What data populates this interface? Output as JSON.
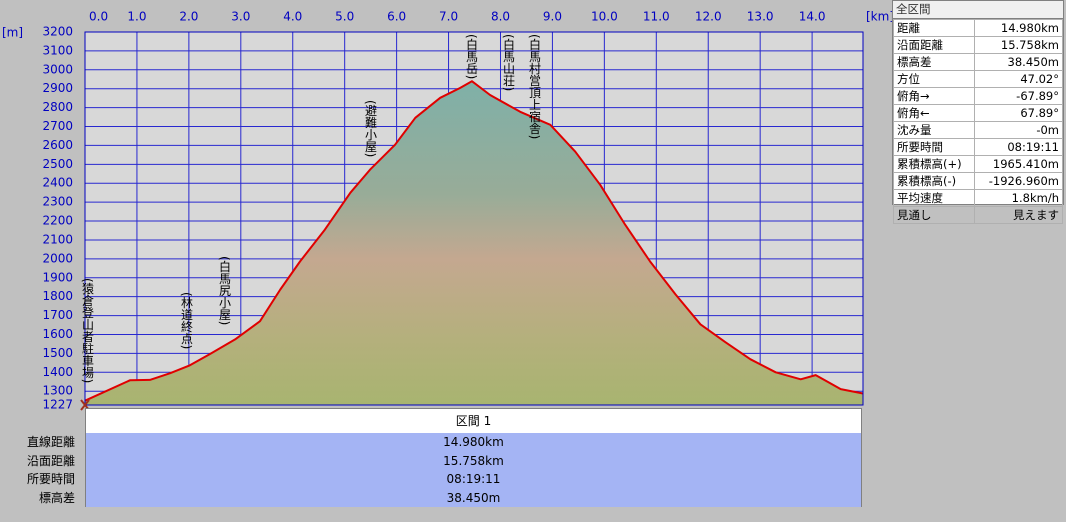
{
  "chart_data": {
    "type": "area",
    "x_unit": "[km]",
    "y_unit": "[m]",
    "x": [
      0,
      0.87,
      1.25,
      1.64,
      2.02,
      2.4,
      2.89,
      3.37,
      3.76,
      4.14,
      4.62,
      5.11,
      5.49,
      5.97,
      6.36,
      6.84,
      7.22,
      7.45,
      7.8,
      8.38,
      8.96,
      9.44,
      9.92,
      10.4,
      10.88,
      11.37,
      11.85,
      12.33,
      12.81,
      13.3,
      13.78,
      14.07,
      14.55,
      14.98
    ],
    "values": [
      1250,
      1358,
      1360,
      1395,
      1437,
      1495,
      1574,
      1670,
      1838,
      1986,
      2155,
      2350,
      2472,
      2604,
      2746,
      2852,
      2904,
      2940,
      2867,
      2778,
      2709,
      2567,
      2392,
      2181,
      1986,
      1812,
      1654,
      1559,
      1469,
      1400,
      1363,
      1385,
      1311,
      1288
    ],
    "color": "#e00000",
    "xlim": [
      0,
      14.98
    ],
    "ylim": [
      1227,
      3200
    ],
    "xticks": [
      {
        "value": 0,
        "label": "0.0"
      },
      {
        "value": 1,
        "label": "1.0"
      },
      {
        "value": 2,
        "label": "2.0"
      },
      {
        "value": 3,
        "label": "3.0"
      },
      {
        "value": 4,
        "label": "4.0"
      },
      {
        "value": 5,
        "label": "5.0"
      },
      {
        "value": 6,
        "label": "6.0"
      },
      {
        "value": 7,
        "label": "7.0"
      },
      {
        "value": 8,
        "label": "8.0"
      },
      {
        "value": 9,
        "label": "9.0"
      },
      {
        "value": 10,
        "label": "10.0"
      },
      {
        "value": 11,
        "label": "11.0"
      },
      {
        "value": 12,
        "label": "12.0"
      },
      {
        "value": 13,
        "label": "13.0"
      },
      {
        "value": 14,
        "label": "14.0"
      }
    ],
    "yticks": [
      1227,
      1300,
      1400,
      1500,
      1600,
      1700,
      1800,
      1900,
      2000,
      2100,
      2200,
      2300,
      2400,
      2500,
      2600,
      2700,
      2800,
      2900,
      3000,
      3100,
      3200
    ],
    "grid": true,
    "annotations": [
      "(猿倉登山者駐車場)",
      "(林道終点)",
      "(白馬尻小屋)",
      "(避難小屋)",
      "(白馬岳)",
      "(白馬山荘)",
      "(白馬村営頂上宿舎)"
    ]
  },
  "summary_panel": {
    "title": "全区間",
    "rows": [
      [
        "距離",
        "14.980km"
      ],
      [
        "沿面距離",
        "15.758km"
      ],
      [
        "標高差",
        "38.450m"
      ],
      [
        "方位",
        "47.02°"
      ],
      [
        "俯角→",
        "-67.89°"
      ],
      [
        "俯角←",
        "67.89°"
      ],
      [
        "沈み量",
        "-0m"
      ],
      [
        "所要時間",
        "08:19:11"
      ],
      [
        "累積標高(+)",
        "1965.410m"
      ],
      [
        "累積標高(-)",
        "-1926.960m"
      ],
      [
        "平均速度",
        "1.8km/h"
      ],
      [
        "見通し",
        "見えます"
      ]
    ]
  },
  "section_table": {
    "header": "区間 1",
    "rows": [
      [
        "直線距離",
        "14.980km"
      ],
      [
        "沿面距離",
        "15.758km"
      ],
      [
        "所要時間",
        "08:19:11"
      ],
      [
        "標高差",
        "38.450m"
      ]
    ]
  }
}
